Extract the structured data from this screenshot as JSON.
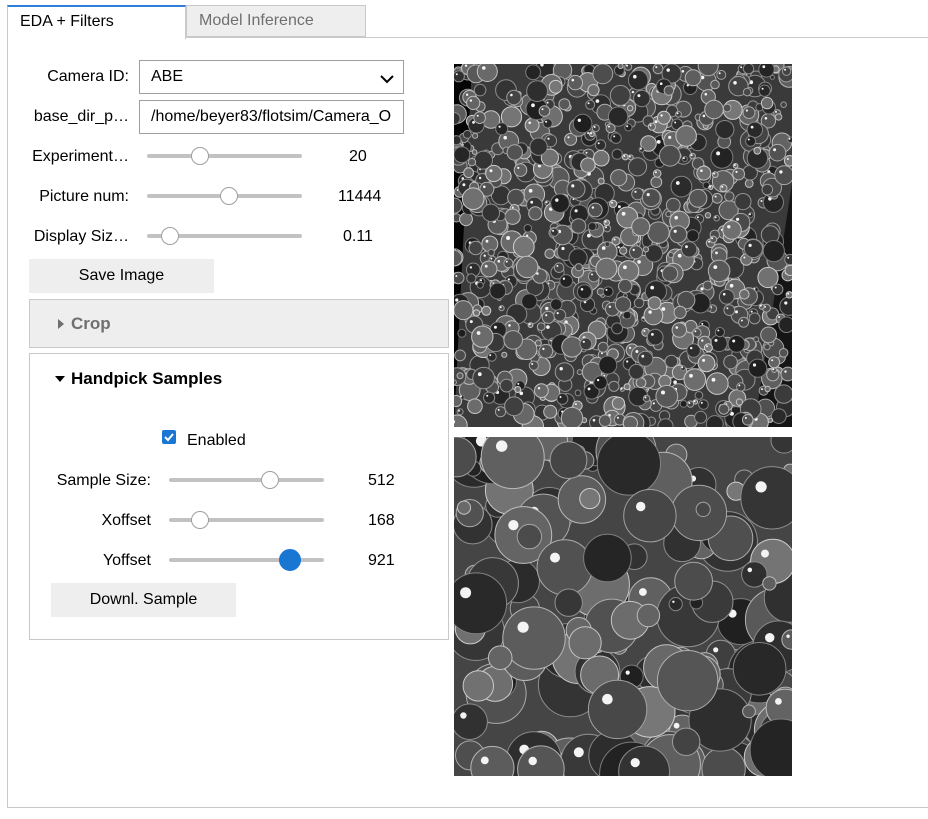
{
  "tabs": [
    {
      "label": "EDA + Filters",
      "active": true
    },
    {
      "label": "Model Inference",
      "active": false
    }
  ],
  "form": {
    "camera_label": "Camera ID:",
    "camera_value": "ABE",
    "base_dir_label": "base_dir_p…",
    "base_dir_value": "/home/beyer83/flotsim/Camera_O",
    "experiment_label": "Experiment…",
    "experiment_value": 20,
    "experiment_fraction": 0.32,
    "picture_label": "Picture num:",
    "picture_value": 11444,
    "picture_fraction": 0.53,
    "display_label": "Display Siz…",
    "display_value": "0.11",
    "display_fraction": 0.1,
    "save_button": "Save Image"
  },
  "crop": {
    "title": "Crop",
    "expanded": false
  },
  "handpick": {
    "title": "Handpick Samples",
    "expanded": true,
    "enabled_label": "Enabled",
    "enabled": true,
    "sample_size_label": "Sample Size:",
    "sample_size_value": 512,
    "sample_size_fraction": 0.67,
    "xoffset_label": "Xoffset",
    "xoffset_value": 168,
    "xoffset_fraction": 0.16,
    "yoffset_label": "Yoffset",
    "yoffset_value": 921,
    "yoffset_fraction": 0.83,
    "download_button": "Downl. Sample"
  },
  "colors": {
    "accent": "#1976d2",
    "tab_active_border": "#2f7ed8",
    "button_bg": "#eeeeee"
  },
  "icons": {
    "select_caret": "chevron-down-icon",
    "crop_toggle": "caret-right-icon",
    "handpick_toggle": "caret-down-icon",
    "checkbox": "checkmark-icon"
  }
}
